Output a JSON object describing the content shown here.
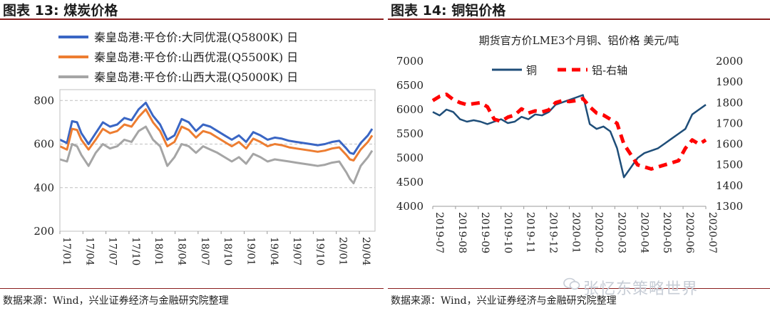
{
  "panels": [
    {
      "title": "图表 13:  煤炭价格",
      "source": "数据来源：Wind，兴业证券经济与金融研究院整理"
    },
    {
      "title": "图表 14:  铜铝价格",
      "source": "数据来源：Wind，兴业证券经济与金融研究院整理"
    }
  ],
  "watermark": "张忆东策略世界",
  "chart_data": [
    {
      "type": "line",
      "title": "",
      "xlabel": "",
      "ylabel": "",
      "ylim": [
        200,
        850
      ],
      "yticks": [
        200,
        400,
        600,
        800
      ],
      "grid": "horizontal-dashed",
      "legend": "top",
      "x_tick_labels": [
        "17/01",
        "17/04",
        "17/07",
        "17/10",
        "18/01",
        "18/04",
        "18/07",
        "18/10",
        "19/01",
        "19/04",
        "19/07",
        "19/10",
        "20/01",
        "20/04"
      ],
      "x_range": [
        0,
        44
      ],
      "series": [
        {
          "name": "秦皇岛港:平仓价:大同优混(Q5800K)  日",
          "color": "#3a66c4",
          "x": [
            0,
            1,
            1.7,
            2.4,
            3,
            4,
            5,
            6,
            7,
            8,
            9,
            10,
            11,
            12,
            13,
            14,
            15,
            16,
            17,
            18,
            19,
            20,
            21,
            22,
            23,
            24,
            25,
            26,
            27,
            28,
            29,
            30,
            31,
            32,
            33,
            34,
            35,
            36,
            37,
            38,
            39,
            40,
            40.5,
            41,
            42,
            43,
            43.6
          ],
          "y": [
            620,
            605,
            705,
            700,
            650,
            600,
            650,
            700,
            680,
            690,
            720,
            710,
            760,
            790,
            730,
            690,
            620,
            640,
            715,
            700,
            660,
            690,
            680,
            660,
            640,
            620,
            640,
            610,
            655,
            640,
            620,
            630,
            625,
            615,
            610,
            605,
            600,
            595,
            600,
            610,
            615,
            580,
            560,
            555,
            605,
            640,
            670
          ]
        },
        {
          "name": "秦皇岛港:平仓价:山西优混(Q5500K)  日",
          "color": "#ed7d31",
          "x": [
            0,
            1,
            1.7,
            2.4,
            3,
            4,
            5,
            6,
            7,
            8,
            9,
            10,
            11,
            12,
            13,
            14,
            15,
            16,
            17,
            18,
            19,
            20,
            21,
            22,
            23,
            24,
            25,
            26,
            27,
            28,
            29,
            30,
            31,
            32,
            33,
            34,
            35,
            36,
            37,
            38,
            39,
            40,
            40.5,
            41,
            42,
            43,
            43.6
          ],
          "y": [
            590,
            575,
            670,
            665,
            620,
            575,
            620,
            670,
            650,
            660,
            690,
            680,
            725,
            760,
            700,
            660,
            590,
            610,
            680,
            665,
            630,
            660,
            650,
            630,
            610,
            590,
            610,
            580,
            625,
            610,
            590,
            600,
            595,
            585,
            580,
            575,
            570,
            565,
            570,
            580,
            585,
            550,
            530,
            525,
            575,
            610,
            640
          ]
        },
        {
          "name": "秦皇岛港:平仓价:山西大混(Q5000K)  日",
          "color": "#a5a5a5",
          "x": [
            0,
            1,
            1.7,
            2.4,
            3,
            4,
            5,
            6,
            7,
            8,
            9,
            10,
            11,
            12,
            13,
            14,
            15,
            16,
            17,
            18,
            19,
            20,
            21,
            22,
            23,
            24,
            25,
            26,
            27,
            28,
            29,
            30,
            31,
            32,
            33,
            34,
            35,
            36,
            37,
            38,
            39,
            40,
            40.5,
            41,
            42,
            43,
            43.6
          ],
          "y": [
            530,
            520,
            600,
            590,
            550,
            500,
            560,
            600,
            580,
            590,
            620,
            610,
            660,
            680,
            620,
            590,
            500,
            540,
            600,
            590,
            560,
            590,
            575,
            560,
            540,
            520,
            540,
            510,
            555,
            540,
            520,
            530,
            525,
            520,
            515,
            510,
            505,
            500,
            505,
            515,
            520,
            470,
            440,
            420,
            500,
            540,
            570
          ]
        }
      ]
    },
    {
      "type": "line",
      "title": "期货官方价LME3个月铜、铝价格  美元/吨",
      "xlabel": "",
      "ylabel": "",
      "ylim": [
        4000,
        7000
      ],
      "y2lim": [
        1300,
        2000
      ],
      "yticks": [
        4000,
        4500,
        5000,
        5500,
        6000,
        6500,
        7000
      ],
      "y2ticks": [
        1300,
        1400,
        1500,
        1600,
        1700,
        1800,
        1900,
        2000
      ],
      "grid": "none",
      "legend": "top",
      "x_tick_labels": [
        "2019-07",
        "2019-08",
        "2019-09",
        "2019-10",
        "2019-11",
        "2019-12",
        "2020-01",
        "2020-02",
        "2020-03",
        "2020-04",
        "2020-05",
        "2020-06",
        "2020-07"
      ],
      "x_range": [
        0,
        12
      ],
      "series": [
        {
          "name": "铜",
          "color": "#1f4e79",
          "axis": "left",
          "x": [
            0,
            0.3,
            0.6,
            0.9,
            1.2,
            1.5,
            1.8,
            2.1,
            2.4,
            2.7,
            3.0,
            3.3,
            3.6,
            3.9,
            4.2,
            4.5,
            4.8,
            5.1,
            5.4,
            5.7,
            6.0,
            6.3,
            6.6,
            6.9,
            7.2,
            7.5,
            7.8,
            8.1,
            8.4,
            8.7,
            9.0,
            9.3,
            9.6,
            9.9,
            10.2,
            10.5,
            10.8,
            11.1,
            11.4,
            11.7,
            12.0
          ],
          "y": [
            5950,
            5880,
            6000,
            5950,
            5800,
            5750,
            5780,
            5750,
            5700,
            5750,
            5800,
            5720,
            5750,
            5850,
            5800,
            5900,
            5880,
            5950,
            6100,
            6150,
            6200,
            6250,
            6300,
            5700,
            5600,
            5650,
            5550,
            5200,
            4600,
            4800,
            5000,
            5100,
            5150,
            5200,
            5300,
            5400,
            5500,
            5600,
            5900,
            6000,
            6100
          ]
        },
        {
          "name": "铝-右轴",
          "color": "#ff0000",
          "axis": "right",
          "dashed": true,
          "x": [
            0,
            0.3,
            0.6,
            0.9,
            1.2,
            1.5,
            1.8,
            2.1,
            2.4,
            2.7,
            3.0,
            3.3,
            3.6,
            3.9,
            4.2,
            4.5,
            4.8,
            5.1,
            5.4,
            5.7,
            6.0,
            6.3,
            6.6,
            6.9,
            7.2,
            7.5,
            7.8,
            8.1,
            8.4,
            8.7,
            9.0,
            9.3,
            9.6,
            9.9,
            10.2,
            10.5,
            10.8,
            11.1,
            11.4,
            11.7,
            12.0
          ],
          "y": [
            1810,
            1830,
            1840,
            1815,
            1800,
            1790,
            1795,
            1800,
            1780,
            1720,
            1710,
            1730,
            1740,
            1770,
            1750,
            1760,
            1755,
            1765,
            1800,
            1810,
            1805,
            1810,
            1820,
            1780,
            1750,
            1740,
            1720,
            1700,
            1600,
            1550,
            1500,
            1490,
            1480,
            1490,
            1500,
            1510,
            1520,
            1580,
            1620,
            1600,
            1620
          ]
        }
      ]
    }
  ]
}
